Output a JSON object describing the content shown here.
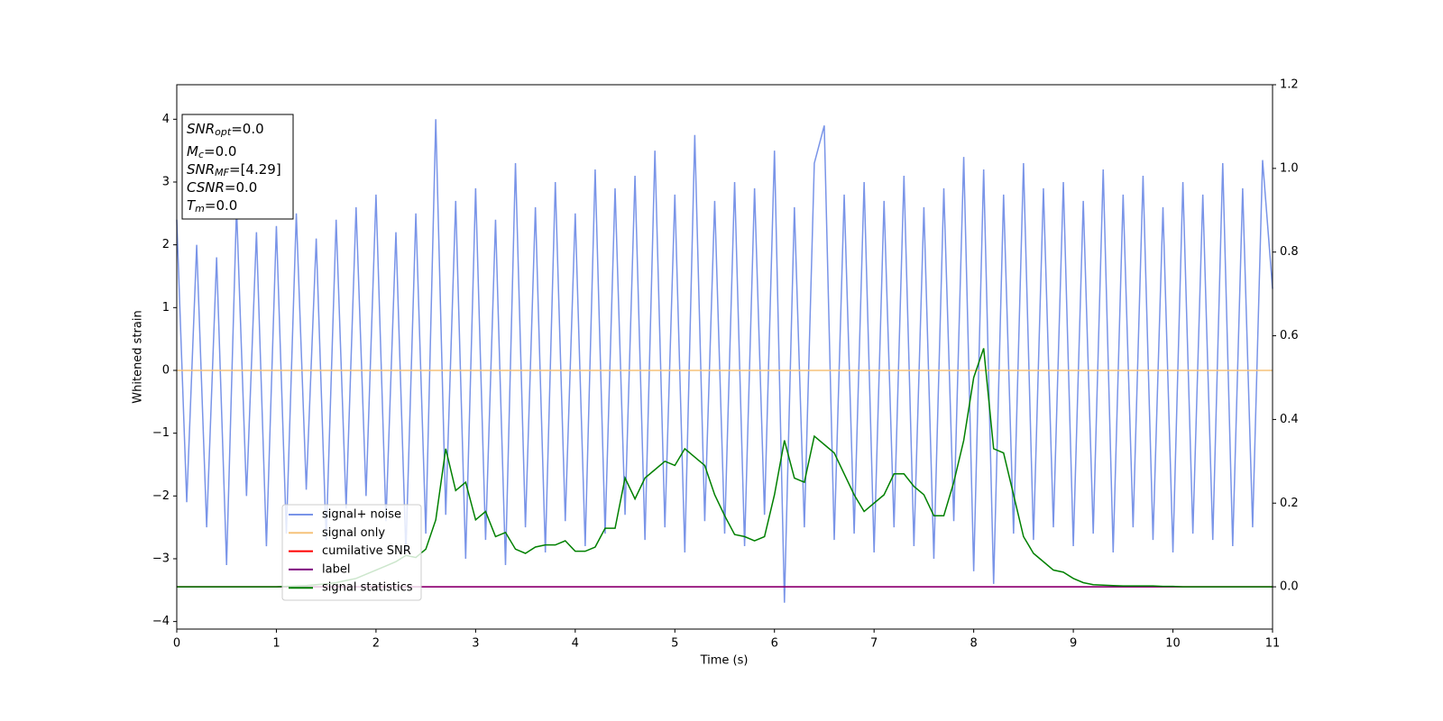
{
  "chart_data": {
    "type": "line",
    "xlabel": "Time (s)",
    "ylabel": "Whitened strain",
    "xlim": [
      0,
      11
    ],
    "xticks": [
      0,
      1,
      2,
      3,
      4,
      5,
      6,
      7,
      8,
      9,
      10,
      11
    ],
    "ylim": [
      -4.12,
      4.55
    ],
    "yticks": [
      {
        "value": -4,
        "label": "−4"
      },
      {
        "value": -3,
        "label": "−3"
      },
      {
        "value": -2,
        "label": "−2"
      },
      {
        "value": -1,
        "label": "−1"
      },
      0,
      1,
      2,
      3,
      4
    ],
    "y2lim": [
      -0.101,
      1.2
    ],
    "y2ticks": [
      {
        "value": 0,
        "label": "0.0"
      },
      {
        "value": 0.2,
        "label": "0.2"
      },
      {
        "value": 0.4,
        "label": "0.4"
      },
      {
        "value": 0.6,
        "label": "0.6"
      },
      {
        "value": 0.8,
        "label": "0.8"
      },
      {
        "value": 1,
        "label": "1.0"
      },
      {
        "value": 1.2,
        "label": "1.2"
      }
    ],
    "x": [
      0,
      0.1,
      0.2,
      0.3,
      0.4,
      0.5,
      0.6,
      0.7,
      0.8,
      0.9,
      1,
      1.1,
      1.2,
      1.3,
      1.4,
      1.5,
      1.6,
      1.7,
      1.8,
      1.9,
      2,
      2.1,
      2.2,
      2.3,
      2.4,
      2.5,
      2.6,
      2.7,
      2.8,
      2.9,
      3,
      3.1,
      3.2,
      3.3,
      3.4,
      3.5,
      3.6,
      3.7,
      3.8,
      3.9,
      4,
      4.1,
      4.2,
      4.3,
      4.4,
      4.5,
      4.6,
      4.7,
      4.8,
      4.9,
      5,
      5.1,
      5.2,
      5.3,
      5.4,
      5.5,
      5.6,
      5.7,
      5.8,
      5.9,
      6,
      6.1,
      6.2,
      6.3,
      6.4,
      6.5,
      6.6,
      6.7,
      6.8,
      6.9,
      7,
      7.1,
      7.2,
      7.3,
      7.4,
      7.5,
      7.6,
      7.7,
      7.8,
      7.9,
      8,
      8.1,
      8.2,
      8.3,
      8.4,
      8.5,
      8.6,
      8.7,
      8.8,
      8.9,
      9,
      9.1,
      9.2,
      9.3,
      9.4,
      9.5,
      9.6,
      9.7,
      9.8,
      9.9,
      10,
      10.1,
      10.2,
      10.3,
      10.4,
      10.5,
      10.6,
      10.7,
      10.8,
      10.9,
      11
    ],
    "legend": "lower left",
    "series": [
      {
        "name": "signal+ noise",
        "color": "#7994e8",
        "values": [
          2.4,
          -2.1,
          2.0,
          -2.5,
          1.8,
          -3.1,
          2.6,
          -2.0,
          2.2,
          -2.8,
          2.3,
          -2.6,
          2.5,
          -1.9,
          2.1,
          -2.7,
          2.4,
          -2.2,
          2.6,
          -2.0,
          2.8,
          -2.4,
          2.2,
          -2.9,
          2.5,
          -2.6,
          4.0,
          -2.3,
          2.7,
          -3.0,
          2.9,
          -2.7,
          2.4,
          -3.1,
          3.3,
          -2.5,
          2.6,
          -2.9,
          3.0,
          -2.4,
          2.5,
          -2.8,
          3.2,
          -2.6,
          2.9,
          -2.3,
          3.1,
          -2.7,
          3.5,
          -2.5,
          2.8,
          -2.9,
          3.75,
          -2.4,
          2.7,
          -2.6,
          3.0,
          -2.8,
          2.9,
          -2.3,
          3.5,
          -3.7,
          2.6,
          -2.5,
          3.3,
          3.9,
          -2.7,
          2.8,
          -2.6,
          3.0,
          -2.9,
          2.7,
          -2.5,
          3.1,
          -2.8,
          2.6,
          -3.0,
          2.9,
          -2.4,
          3.4,
          -3.2,
          3.2,
          -3.4,
          2.8,
          -2.6,
          3.3,
          -2.7,
          2.9,
          -2.5,
          3.0,
          -2.8,
          2.7,
          -2.6,
          3.2,
          -2.9,
          2.8,
          -2.5,
          3.1,
          -2.7,
          2.6,
          -2.9,
          3.0,
          -2.6,
          2.8,
          -2.7,
          3.3,
          -2.8,
          2.9,
          -2.5,
          3.35,
          1.3
        ]
      },
      {
        "name": "signal only",
        "color": "#f5c27a",
        "x": [
          0,
          11
        ],
        "values": [
          0,
          0
        ]
      },
      {
        "name": "cumilative SNR",
        "color": "#ff0000",
        "axis": "y2",
        "x": [
          0,
          11
        ],
        "values": [
          0,
          0
        ]
      },
      {
        "name": "label",
        "color": "#800080",
        "axis": "y2",
        "x": [
          0,
          11
        ],
        "values": [
          0,
          0
        ]
      },
      {
        "name": "signal statistics",
        "color": "#008000",
        "axis": "y2",
        "values": [
          0,
          0,
          0,
          0,
          0,
          0,
          0,
          0,
          0,
          0,
          0,
          0.001,
          0.002,
          0.003,
          0.005,
          0.007,
          0.01,
          0.015,
          0.02,
          0.03,
          0.04,
          0.05,
          0.06,
          0.075,
          0.07,
          0.09,
          0.16,
          0.33,
          0.23,
          0.25,
          0.16,
          0.18,
          0.12,
          0.13,
          0.09,
          0.08,
          0.095,
          0.1,
          0.1,
          0.11,
          0.085,
          0.085,
          0.095,
          0.14,
          0.14,
          0.26,
          0.21,
          0.26,
          0.28,
          0.3,
          0.29,
          0.33,
          0.31,
          0.29,
          0.22,
          0.17,
          0.125,
          0.12,
          0.11,
          0.12,
          0.22,
          0.35,
          0.26,
          0.25,
          0.36,
          0.34,
          0.32,
          0.27,
          0.22,
          0.18,
          0.2,
          0.22,
          0.27,
          0.27,
          0.24,
          0.22,
          0.17,
          0.17,
          0.25,
          0.35,
          0.5,
          0.57,
          0.33,
          0.32,
          0.22,
          0.12,
          0.08,
          0.06,
          0.04,
          0.035,
          0.02,
          0.01,
          0.005,
          0.004,
          0.003,
          0.002,
          0.002,
          0.002,
          0.002,
          0.001,
          0.001,
          0,
          0,
          0,
          0,
          0,
          0,
          0,
          0,
          0,
          0
        ]
      }
    ],
    "annotation": [
      {
        "base": "SNR",
        "sub": "opt",
        "tail": "=0.0"
      },
      {
        "base": "M",
        "sub": "c",
        "tail": "=0.0"
      },
      {
        "base": "SNR",
        "sub": "MF",
        "tail": "=[4.29]"
      },
      {
        "base": "CSNR",
        "tail": "=0.0"
      },
      {
        "base": "T",
        "sub": "m",
        "tail": "=0.0"
      }
    ]
  }
}
